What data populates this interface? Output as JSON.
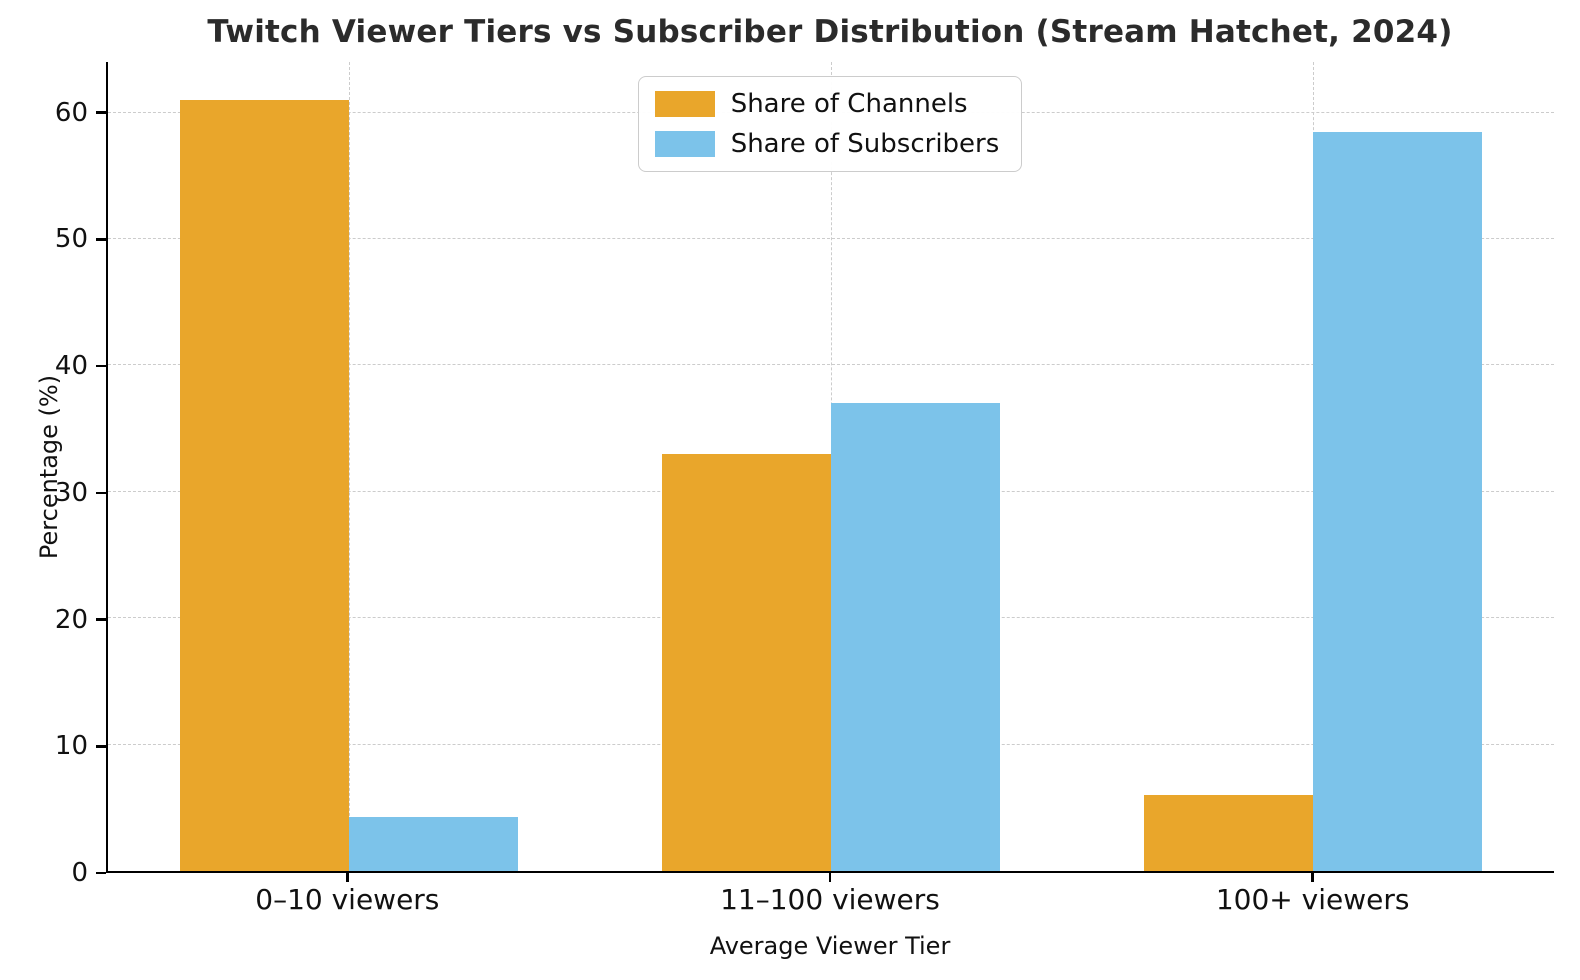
{
  "chart_data": {
    "type": "bar",
    "title": "Twitch Viewer Tiers vs Subscriber Distribution (Stream Hatchet, 2024)",
    "xlabel": "Average Viewer Tier",
    "ylabel": "Percentage (%)",
    "categories": [
      "0–10 viewers",
      "11–100 viewers",
      "100+ viewers"
    ],
    "series": [
      {
        "name": "Share of Channels",
        "color": "#E9A62B",
        "values": [
          61,
          33,
          6
        ]
      },
      {
        "name": "Share of Subscribers",
        "color": "#7CC3EA",
        "values": [
          4.3,
          37,
          58.5
        ]
      }
    ],
    "ylim": [
      0,
      64
    ],
    "yticks": [
      0,
      10,
      20,
      30,
      40,
      50,
      60
    ],
    "grid": true,
    "grid_style": "dashed",
    "legend_position": "upper center"
  }
}
